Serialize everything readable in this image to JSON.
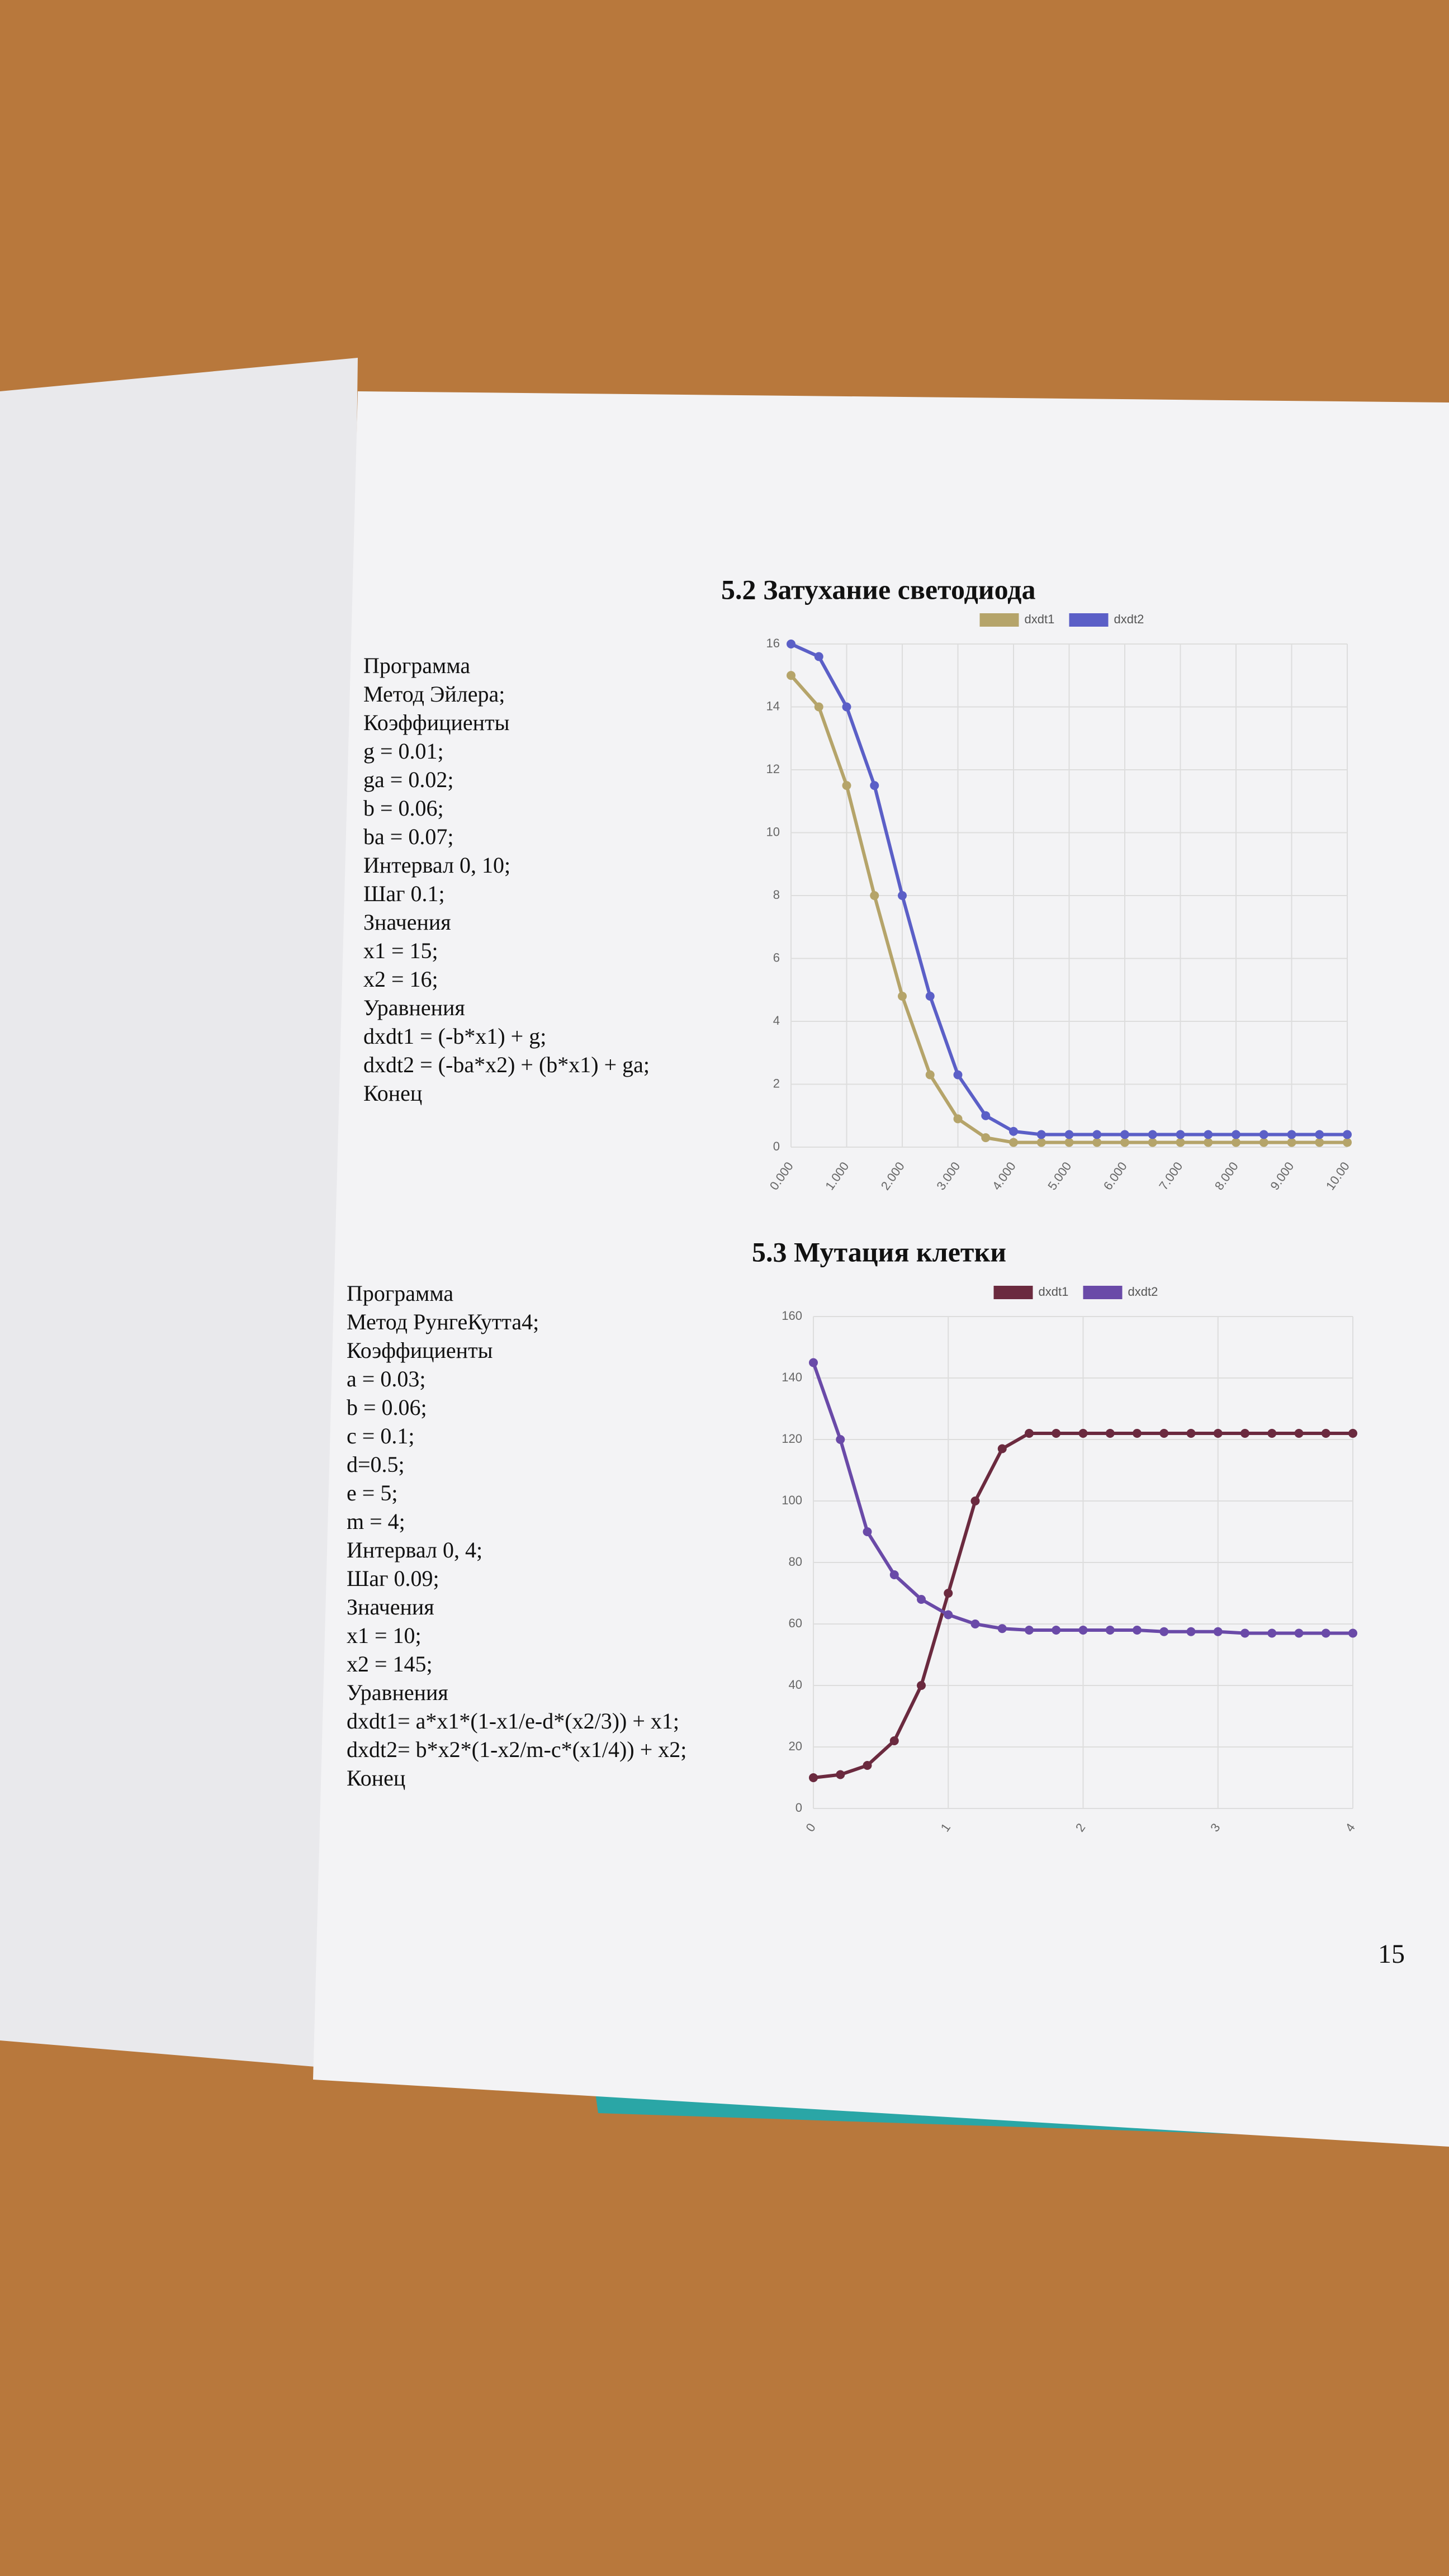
{
  "chart_data": [
    {
      "type": "line",
      "title": "5.2 Затухание светодиода",
      "x": [
        0,
        0.5,
        1,
        1.5,
        2,
        2.5,
        3,
        3.5,
        4,
        4.5,
        5,
        5.5,
        6,
        6.5,
        7,
        7.5,
        8,
        8.5,
        9,
        9.5,
        10
      ],
      "series": [
        {
          "name": "dxdt1",
          "color": "#b5a46a",
          "values": [
            15,
            14,
            11.5,
            8,
            4.8,
            2.3,
            0.9,
            0.3,
            0.15,
            0.15,
            0.15,
            0.15,
            0.15,
            0.15,
            0.15,
            0.15,
            0.15,
            0.15,
            0.15,
            0.15,
            0.15
          ]
        },
        {
          "name": "dxdt2",
          "color": "#5b5fc7",
          "values": [
            16,
            15.6,
            14,
            11.5,
            8,
            4.8,
            2.3,
            1,
            0.5,
            0.4,
            0.4,
            0.4,
            0.4,
            0.4,
            0.4,
            0.4,
            0.4,
            0.4,
            0.4,
            0.4,
            0.4
          ]
        }
      ],
      "xlim": [
        0,
        10
      ],
      "xticks": [
        {
          "value": 0,
          "label": "0.000"
        },
        {
          "value": 1,
          "label": "1.000"
        },
        {
          "value": 2,
          "label": "2.000"
        },
        {
          "value": 3,
          "label": "3.000"
        },
        {
          "value": 4,
          "label": "4.000"
        },
        {
          "value": 5,
          "label": "5.000"
        },
        {
          "value": 6,
          "label": "6.000"
        },
        {
          "value": 7,
          "label": "7.000"
        },
        {
          "value": 8,
          "label": "8.000"
        },
        {
          "value": 9,
          "label": "9.000"
        },
        {
          "value": 10,
          "label": "10.00"
        }
      ],
      "ylim": [
        0,
        16
      ],
      "yticks": [
        0,
        2,
        4,
        6,
        8,
        10,
        12,
        14,
        16
      ],
      "grid": true,
      "legend": "top"
    },
    {
      "type": "line",
      "title": "5.3 Мутация клетки",
      "x": [
        0,
        0.2,
        0.4,
        0.6,
        0.8,
        1,
        1.2,
        1.4,
        1.6,
        1.8,
        2,
        2.2,
        2.4,
        2.6,
        2.8,
        3,
        3.2,
        3.4,
        3.6,
        3.8,
        4
      ],
      "series": [
        {
          "name": "dxdt1",
          "color": "#6b2a3f",
          "values": [
            10,
            11,
            14,
            22,
            40,
            70,
            100,
            117,
            122,
            122,
            122,
            122,
            122,
            122,
            122,
            122,
            122,
            122,
            122,
            122,
            122
          ]
        },
        {
          "name": "dxdt2",
          "color": "#6a4aa8",
          "values": [
            145,
            120,
            90,
            76,
            68,
            63,
            60,
            58.5,
            58,
            58,
            58,
            58,
            58,
            57.5,
            57.5,
            57.5,
            57,
            57,
            57,
            57,
            57
          ]
        }
      ],
      "xlim": [
        0,
        4
      ],
      "xticks": [
        0,
        1,
        2,
        3,
        4
      ],
      "ylim": [
        0,
        160
      ],
      "yticks": [
        0,
        20,
        40,
        60,
        80,
        100,
        120,
        140,
        160
      ],
      "grid": true,
      "legend": "top"
    }
  ],
  "programs": [
    [
      "Программа",
      "Метод Эйлера;",
      "Коэффициенты",
      "g = 0.01;",
      "ga = 0.02;",
      "b = 0.06;",
      "ba = 0.07;",
      "Интервал 0, 10;",
      "Шаг 0.1;",
      "Значения",
      "x1 = 15;",
      "x2 = 16;",
      "Уравнения",
      "dxdt1 = (-b*x1) + g;",
      "dxdt2 = (-ba*x2) + (b*x1) + ga;",
      "Конец"
    ],
    [
      "Программа",
      "Метод РунгеКутта4;",
      "Коэффициенты",
      "a = 0.03;",
      "b = 0.06;",
      "c = 0.1;",
      "d=0.5;",
      "e = 5;",
      "m = 4;",
      "Интервал 0, 4;",
      "Шаг 0.09;",
      "Значения",
      "x1 = 10;",
      "x2 = 145;",
      "Уравнения",
      "dxdt1= a*x1*(1-x1/e-d*(x2/3)) + x1;",
      "dxdt2= b*x2*(1-x2/m-c*(x1/4)) + x2;",
      "Конец"
    ]
  ],
  "page_number": "15"
}
